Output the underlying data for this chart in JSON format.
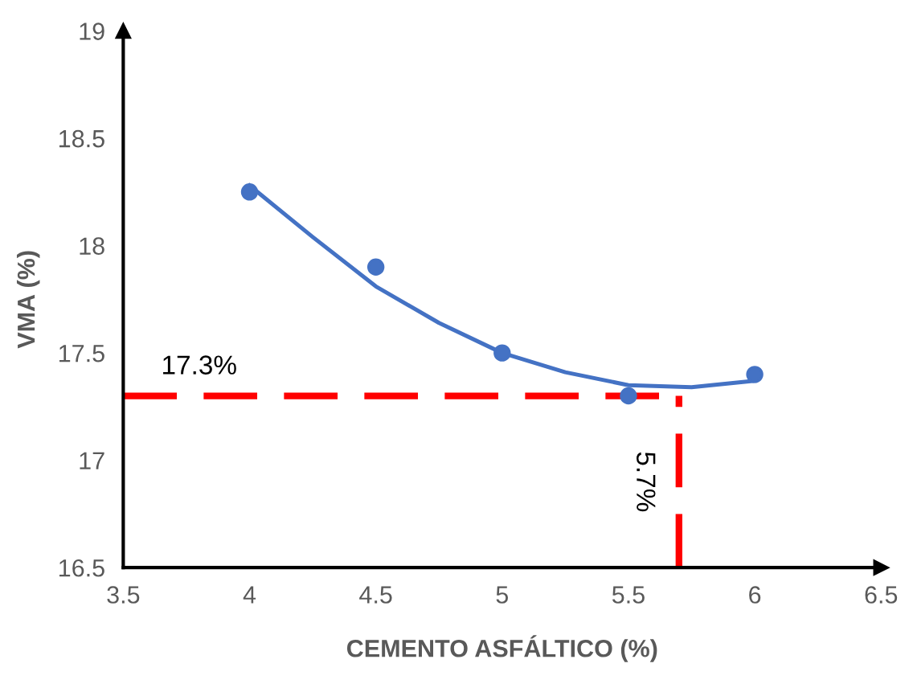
{
  "chart_data": {
    "type": "scatter",
    "xlabel": "CEMENTO ASFÁLTICO (%)",
    "ylabel": "VMA (%)",
    "xlim": [
      3.5,
      6.5
    ],
    "ylim": [
      16.5,
      19
    ],
    "xticks": [
      3.5,
      4,
      4.5,
      5,
      5.5,
      6,
      6.5
    ],
    "yticks": [
      16.5,
      17,
      17.5,
      18,
      18.5,
      19
    ],
    "x": [
      4,
      4.5,
      5,
      5.5,
      6
    ],
    "grid": false,
    "series": [
      {
        "color": "#4472c4",
        "marker": "circle",
        "values": [
          18.25,
          17.9,
          17.5,
          17.3,
          17.4
        ]
      },
      {
        "type": "line",
        "marker": "none",
        "color": "#4472c4",
        "x": [
          4,
          4.25,
          4.5,
          4.75,
          5,
          5.25,
          5.5,
          5.75,
          6
        ],
        "values": [
          18.28,
          18.04,
          17.81,
          17.64,
          17.5,
          17.41,
          17.35,
          17.34,
          17.37
        ]
      }
    ],
    "ref_lines": [
      {
        "axis": "y",
        "value": 17.3,
        "label": "17.3%",
        "color": "#ff0000",
        "line_style": "dashed"
      },
      {
        "axis": "x",
        "value": 5.7,
        "label": "5.7%",
        "color": "#ff0000",
        "line_style": "dashed"
      }
    ]
  }
}
